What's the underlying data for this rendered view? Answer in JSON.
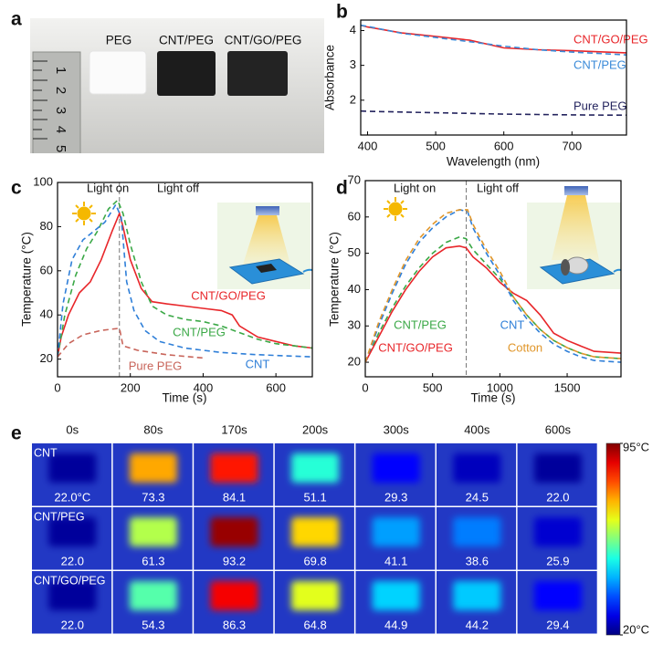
{
  "panel_labels": [
    "a",
    "b",
    "c",
    "d",
    "e"
  ],
  "photo": {
    "labels": [
      "PEG",
      "CNT/PEG",
      "CNT/GO/PEG"
    ],
    "ruler_numbers": [
      "1",
      "2",
      "3",
      "4",
      "5"
    ]
  },
  "chart_data": [
    {
      "type": "line",
      "x_label": "Wavelength (nm)",
      "y_label": "Absorbance",
      "xlim": [
        390,
        780
      ],
      "xticks": [
        400,
        500,
        600,
        700
      ],
      "ylim": [
        1,
        4.3
      ],
      "yticks": [
        2,
        3,
        4
      ],
      "series": [
        {
          "name": "CNT/GO/PEG",
          "color": "#e8262a",
          "style": "solid",
          "x": [
            390,
            400,
            450,
            500,
            550,
            600,
            650,
            700,
            750,
            780
          ],
          "values": [
            4.15,
            4.1,
            3.93,
            3.83,
            3.72,
            3.5,
            3.45,
            3.42,
            3.38,
            3.36
          ]
        },
        {
          "name": "CNT/PEG",
          "color": "#3a8ad8",
          "style": "dashed",
          "x": [
            390,
            400,
            450,
            500,
            550,
            600,
            650,
            700,
            750,
            780
          ],
          "values": [
            4.15,
            4.12,
            3.92,
            3.8,
            3.68,
            3.55,
            3.45,
            3.38,
            3.33,
            3.3
          ]
        },
        {
          "name": "Pure PEG",
          "color": "#24245e",
          "style": "dashed",
          "x": [
            390,
            400,
            450,
            500,
            550,
            600,
            650,
            700,
            750,
            780
          ],
          "values": [
            1.69,
            1.68,
            1.66,
            1.64,
            1.62,
            1.6,
            1.59,
            1.58,
            1.57,
            1.57
          ]
        }
      ]
    },
    {
      "type": "line",
      "x_label": "Time (s)",
      "y_label": "Temperature (°C)",
      "annotations": [
        "Light on",
        "Light off"
      ],
      "vline": 170,
      "xlim": [
        0,
        700
      ],
      "xticks": [
        0,
        200,
        400,
        600
      ],
      "ylim": [
        12,
        100
      ],
      "yticks": [
        20,
        40,
        60,
        80,
        100
      ],
      "series": [
        {
          "name": "CNT/GO/PEG",
          "color": "#e8262a",
          "style": "solid",
          "x": [
            0,
            10,
            30,
            60,
            90,
            120,
            150,
            170,
            180,
            200,
            230,
            260,
            300,
            350,
            400,
            450,
            480,
            500,
            550,
            600,
            650,
            700
          ],
          "values": [
            21,
            30,
            40,
            50,
            55,
            65,
            78,
            86,
            80,
            65,
            52,
            46,
            45,
            44,
            43,
            42,
            40,
            35,
            30,
            28,
            26,
            25
          ]
        },
        {
          "name": "CNT/PEG",
          "color": "#3aa846",
          "style": "dashed",
          "x": [
            0,
            20,
            50,
            80,
            110,
            140,
            165,
            180,
            200,
            230,
            260,
            300,
            350,
            400,
            450,
            500,
            550,
            600,
            650,
            700
          ],
          "values": [
            21,
            40,
            58,
            70,
            78,
            88,
            92,
            86,
            72,
            55,
            44,
            40,
            38,
            37,
            35,
            32,
            29,
            27,
            26,
            25
          ]
        },
        {
          "name": "CNT",
          "color": "#2f7fd8",
          "style": "dashed",
          "x": [
            0,
            15,
            40,
            70,
            100,
            130,
            160,
            175,
            190,
            210,
            240,
            280,
            350,
            450,
            550,
            700
          ],
          "values": [
            21,
            45,
            65,
            74,
            78,
            82,
            90,
            84,
            55,
            42,
            33,
            28,
            25,
            23,
            22,
            21
          ]
        },
        {
          "name": "Pure PEG",
          "color": "#c8645a",
          "style": "dashed",
          "x": [
            0,
            30,
            70,
            120,
            170,
            180,
            220,
            300,
            400
          ],
          "values": [
            21,
            27,
            31,
            33,
            34,
            26,
            24,
            22,
            20.5
          ]
        }
      ]
    },
    {
      "type": "line",
      "x_label": "Time (s)",
      "y_label": "Temperature (°C)",
      "annotations": [
        "Light on",
        "Light off"
      ],
      "vline": 750,
      "xlim": [
        0,
        1900
      ],
      "xticks": [
        0,
        500,
        1000,
        1500
      ],
      "ylim": [
        16,
        70
      ],
      "yticks": [
        20,
        30,
        40,
        50,
        60,
        70
      ],
      "series": [
        {
          "name": "CNT/PEG",
          "color": "#3aa846",
          "style": "dashed",
          "x": [
            0,
            100,
            200,
            300,
            400,
            500,
            600,
            700,
            750,
            800,
            900,
            1000,
            1100,
            1200,
            1300,
            1400,
            1500,
            1600,
            1700,
            1900
          ],
          "values": [
            20,
            28,
            35,
            41,
            46,
            50,
            53,
            54.5,
            54,
            51,
            47,
            43,
            38,
            33,
            29,
            26,
            24,
            22.5,
            21.5,
            21
          ]
        },
        {
          "name": "CNT/GO/PEG",
          "color": "#e8262a",
          "style": "solid",
          "x": [
            0,
            100,
            200,
            300,
            400,
            500,
            600,
            700,
            750,
            800,
            900,
            1000,
            1100,
            1200,
            1300,
            1400,
            1500,
            1600,
            1700,
            1900
          ],
          "values": [
            20,
            27,
            34,
            40,
            45,
            49,
            51.5,
            52,
            51.5,
            49,
            46,
            42,
            39,
            37,
            33,
            28,
            26,
            24.5,
            23,
            22.5
          ]
        },
        {
          "name": "CNT",
          "color": "#2f7fd8",
          "style": "dashed",
          "x": [
            0,
            100,
            200,
            300,
            400,
            500,
            600,
            700,
            760,
            800,
            900,
            1000,
            1100,
            1200,
            1300,
            1400,
            1500,
            1600,
            1700,
            1900
          ],
          "values": [
            20,
            30,
            39,
            47,
            53,
            57,
            60,
            62,
            61.5,
            57,
            50,
            44,
            37,
            32,
            28,
            25,
            23,
            21.5,
            20.5,
            20
          ]
        },
        {
          "name": "Cotton",
          "color": "#e0962a",
          "style": "dashed",
          "x": [
            0,
            100,
            200,
            300,
            400,
            500,
            600,
            700,
            760,
            800,
            900,
            1000,
            1100,
            1200,
            1300,
            1400,
            1500,
            1600,
            1700,
            1900
          ],
          "values": [
            20,
            31,
            40,
            48,
            54,
            58,
            61,
            62,
            62,
            58,
            51,
            45,
            38,
            33,
            29,
            26,
            24,
            22.5,
            21.5,
            21
          ]
        }
      ]
    },
    {
      "type": "heatmap",
      "columns": [
        "0s",
        "80s",
        "170s",
        "200s",
        "300s",
        "400s",
        "600s"
      ],
      "rows": [
        "CNT",
        "CNT/PEG",
        "CNT/GO/PEG"
      ],
      "values": [
        [
          22,
          73.3,
          84.1,
          51.1,
          29.3,
          24.5,
          22
        ],
        [
          22,
          61.3,
          93.2,
          69.8,
          41.1,
          38.6,
          25.9
        ],
        [
          22,
          54.3,
          86.3,
          64.8,
          44.9,
          44.2,
          29.4
        ]
      ],
      "value_labels": [
        [
          "22.0°C",
          "73.3",
          "84.1",
          "51.1",
          "29.3",
          "24.5",
          "22.0"
        ],
        [
          "22.0",
          "61.3",
          "93.2",
          "69.8",
          "41.1",
          "38.6",
          "25.9"
        ],
        [
          "22.0",
          "54.3",
          "86.3",
          "64.8",
          "44.9",
          "44.2",
          "29.4"
        ]
      ],
      "clim": [
        20,
        95
      ],
      "cticks": [
        {
          "value": 95,
          "label": "95°C"
        },
        {
          "value": 20,
          "label": "20°C"
        }
      ]
    }
  ]
}
